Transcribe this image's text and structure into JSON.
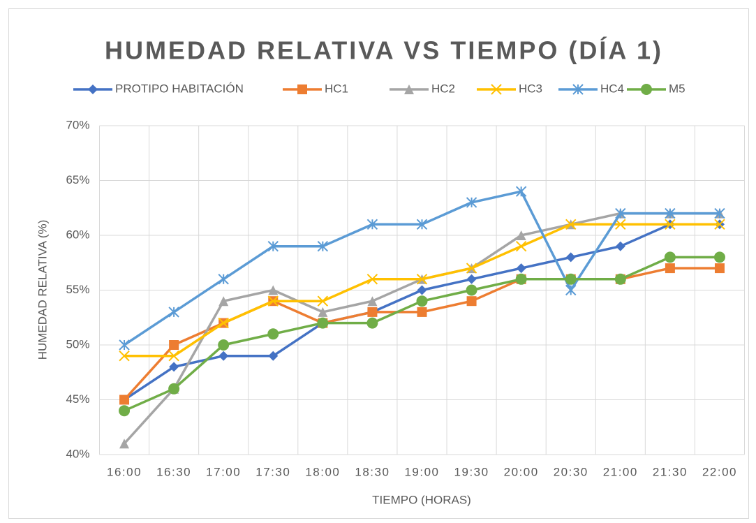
{
  "chart_data": {
    "type": "line",
    "title": "HUMEDAD RELATIVA VS TIEMPO (DÍA 1)",
    "x_label": "TIEMPO (HORAS)",
    "y_label": "HUMEDAD RELATIVA (%)",
    "categories": [
      "16:00",
      "16:30",
      "17:00",
      "17:30",
      "18:00",
      "18:30",
      "19:00",
      "19:30",
      "20:00",
      "20:30",
      "21:00",
      "21:30",
      "22:00"
    ],
    "series": [
      {
        "name": "PROTIPO HABITACIÓN",
        "color": "#4472c4",
        "marker": "diamond",
        "values": [
          45,
          48,
          49,
          49,
          52,
          53,
          55,
          56,
          57,
          58,
          59,
          61,
          61
        ]
      },
      {
        "name": "HC1",
        "color": "#ed7d31",
        "marker": "square",
        "values": [
          45,
          50,
          52,
          54,
          52,
          53,
          53,
          54,
          56,
          56,
          56,
          57,
          57
        ]
      },
      {
        "name": "HC2",
        "color": "#a5a5a5",
        "marker": "triangle",
        "values": [
          41,
          46,
          54,
          55,
          53,
          54,
          56,
          57,
          60,
          61,
          62,
          62,
          62
        ]
      },
      {
        "name": "HC3",
        "color": "#ffc000",
        "marker": "x",
        "values": [
          49,
          49,
          52,
          54,
          54,
          56,
          56,
          57,
          59,
          61,
          61,
          61,
          61
        ]
      },
      {
        "name": "HC4",
        "color": "#5b9bd5",
        "marker": "asterisk",
        "values": [
          50,
          53,
          56,
          59,
          59,
          61,
          61,
          63,
          64,
          55,
          62,
          62,
          62
        ]
      },
      {
        "name": "M5",
        "color": "#70ad47",
        "marker": "circle",
        "values": [
          44,
          46,
          50,
          51,
          52,
          52,
          54,
          55,
          56,
          56,
          56,
          58,
          58
        ]
      }
    ],
    "ylim": [
      40,
      70
    ],
    "yticks": [
      {
        "value": 40,
        "label": "40%"
      },
      {
        "value": 45,
        "label": "45%"
      },
      {
        "value": 50,
        "label": "50%"
      },
      {
        "value": 55,
        "label": "55%"
      },
      {
        "value": 60,
        "label": "60%"
      },
      {
        "value": 65,
        "label": "65%"
      },
      {
        "value": 70,
        "label": "70%"
      }
    ],
    "grid": true,
    "legend": "top"
  }
}
